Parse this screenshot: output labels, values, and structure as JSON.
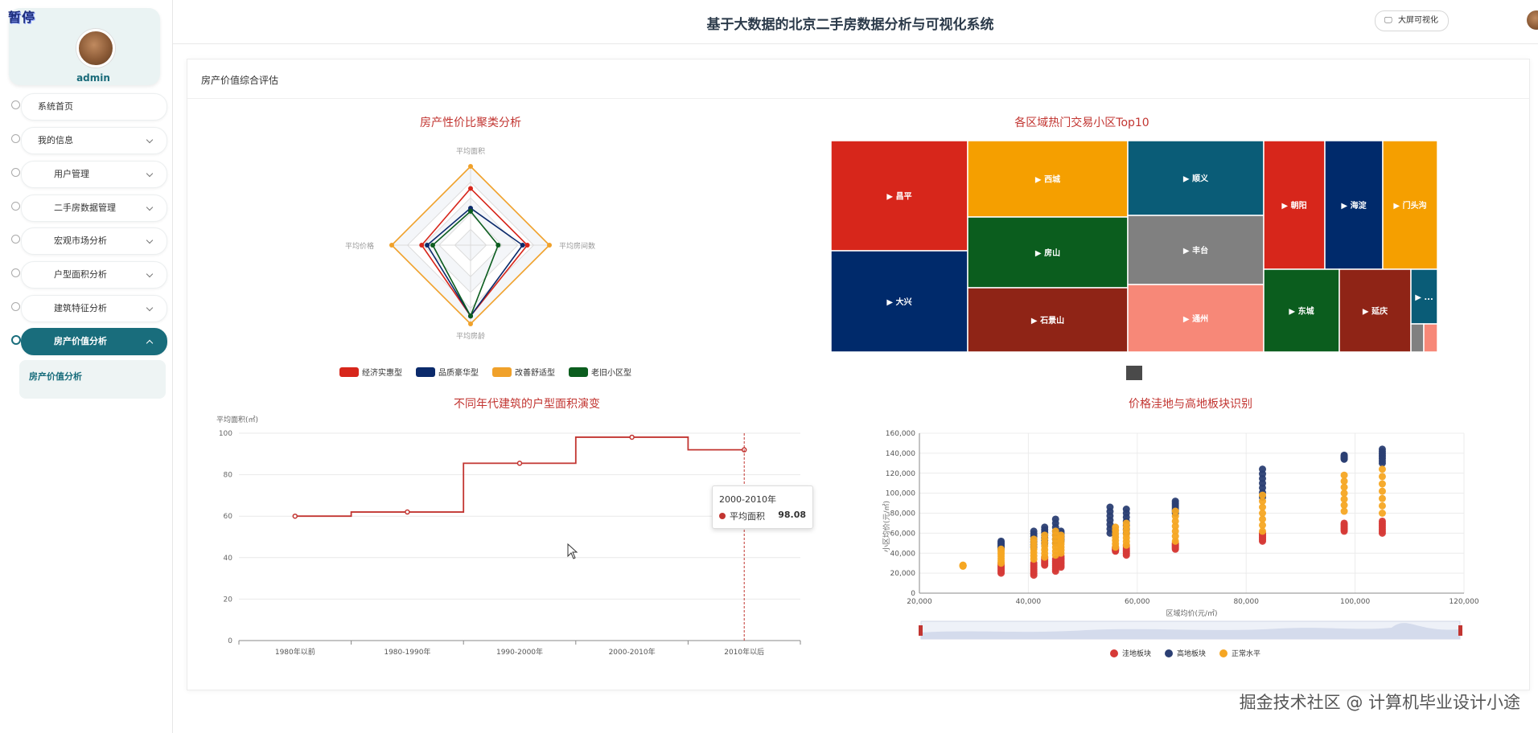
{
  "sidebar": {
    "pause_label": "暂停",
    "username": "admin",
    "menu": [
      {
        "label": "系统首页"
      },
      {
        "label": "我的信息"
      },
      {
        "label": "用户管理"
      },
      {
        "label": "二手房数据管理"
      },
      {
        "label": "宏观市场分析"
      },
      {
        "label": "户型面积分析"
      },
      {
        "label": "建筑特征分析"
      },
      {
        "label": "房产价值分析"
      }
    ],
    "submenu": {
      "label": "房产价值分析"
    }
  },
  "header": {
    "title": "基于大数据的北京二手房数据分析与可视化系统",
    "bigscreen_label": "大屏可视化",
    "username": "admin"
  },
  "panel": {
    "title": "房产价值综合评估"
  },
  "tooltip": {
    "title": "2000-2010年",
    "name": "平均面积",
    "value": "98.08"
  },
  "watermark": "掘金技术社区 @ 计算机毕业设计小途",
  "colors": {
    "primary": "#196d7c",
    "chart_red": "#c23531",
    "navy": "#001f6b",
    "orange": "#f5a623",
    "green": "#0b5d1e"
  },
  "chart_data": [
    {
      "type": "radar",
      "title": "房产性价比聚类分析",
      "indicators": [
        "平均面积",
        "平均房间数",
        "平均房龄",
        "平均价格"
      ],
      "series": [
        {
          "name": "经济实惠型",
          "color": "#d7261b",
          "values": [
            0.72,
            0.72,
            0.9,
            0.62
          ]
        },
        {
          "name": "品质豪华型",
          "color": "#0b2a6b",
          "values": [
            0.47,
            0.66,
            0.9,
            0.55
          ]
        },
        {
          "name": "改善舒适型",
          "color": "#f0a12a",
          "values": [
            1.0,
            1.0,
            1.0,
            1.0
          ]
        },
        {
          "name": "老旧小区型",
          "color": "#0b5d1e",
          "values": [
            0.43,
            0.35,
            0.9,
            0.48
          ]
        }
      ]
    },
    {
      "type": "treemap",
      "title": "各区域热门交易小区Top10",
      "items": [
        {
          "name": "▶ 昌平",
          "color": "#d7261b"
        },
        {
          "name": "▶ 大兴",
          "color": "#002a6b"
        },
        {
          "name": "▶ 西城",
          "color": "#f59f00"
        },
        {
          "name": "▶ 房山",
          "color": "#0b5d1e"
        },
        {
          "name": "▶ 石景山",
          "color": "#8f2416"
        },
        {
          "name": "▶ 顺义",
          "color": "#0a5c77"
        },
        {
          "name": "▶ 丰台",
          "color": "#808080"
        },
        {
          "name": "▶ 通州",
          "color": "#f78878"
        },
        {
          "name": "▶ 朝阳",
          "color": "#d7261b"
        },
        {
          "name": "▶ 海淀",
          "color": "#002a6b"
        },
        {
          "name": "▶ 门头沟",
          "color": "#f59f00"
        },
        {
          "name": "▶ 东城",
          "color": "#0b5d1e"
        },
        {
          "name": "▶ 延庆",
          "color": "#8f2416"
        },
        {
          "name": "▶ ...",
          "color": "#0a5c77"
        }
      ]
    },
    {
      "type": "line",
      "step": true,
      "title": "不同年代建筑的户型面积演变",
      "ylabel": "平均面积(㎡)",
      "categories": [
        "1980年以前",
        "1980-1990年",
        "1990-2000年",
        "2000-2010年",
        "2010年以后"
      ],
      "values": [
        60,
        62,
        85.5,
        98.08,
        92
      ],
      "ylim": [
        0,
        100
      ],
      "yticks": [
        "0",
        "20",
        "40",
        "60",
        "80",
        "100"
      ]
    },
    {
      "type": "scatter",
      "title": "价格洼地与高地板块识别",
      "xlabel": "区域均价(元/㎡)",
      "ylabel": "小区均价(元/㎡)",
      "xlim": [
        20000,
        120000
      ],
      "ylim": [
        0,
        160000
      ],
      "xticks": [
        "20,000",
        "40,000",
        "60,000",
        "80,000",
        "100,000",
        "120,000"
      ],
      "yticks": [
        "0",
        "20,000",
        "40,000",
        "60,000",
        "80,000",
        "100,000",
        "120,000",
        "140,000",
        "160,000"
      ],
      "legend": [
        "洼地板块",
        "高地板块",
        "正常水平"
      ],
      "series": [
        {
          "name": "洼地板块",
          "color": "#d63a37",
          "groups": [
            [
              35000,
              20000,
              30000
            ],
            [
              41000,
              18000,
              30000
            ],
            [
              43000,
              28000,
              36000
            ],
            [
              45000,
              22000,
              34000
            ],
            [
              46000,
              26000,
              37000
            ],
            [
              56000,
              42000,
              46000
            ],
            [
              58000,
              38000,
              48000
            ],
            [
              67000,
              44000,
              50000
            ],
            [
              83000,
              52000,
              60000
            ],
            [
              98000,
              62000,
              70000
            ],
            [
              105000,
              60000,
              72000
            ]
          ]
        },
        {
          "name": "高地板块",
          "color": "#2b3f73",
          "groups": [
            [
              35000,
              44000,
              52000
            ],
            [
              41000,
              46000,
              62000
            ],
            [
              43000,
              50000,
              66000
            ],
            [
              45000,
              50000,
              74000
            ],
            [
              46000,
              52000,
              62000
            ],
            [
              55000,
              60000,
              86000
            ],
            [
              58000,
              60000,
              84000
            ],
            [
              67000,
              80000,
              92000
            ],
            [
              83000,
              96000,
              124000
            ],
            [
              98000,
              134000,
              138000
            ],
            [
              105000,
              130000,
              144000
            ]
          ]
        },
        {
          "name": "正常水平",
          "color": "#f5a623",
          "groups": [
            [
              28000,
              27000,
              28000
            ],
            [
              35000,
              30000,
              44000
            ],
            [
              41000,
              34000,
              54000
            ],
            [
              43000,
              36000,
              58000
            ],
            [
              45000,
              38000,
              62000
            ],
            [
              46000,
              40000,
              58000
            ],
            [
              56000,
              46000,
              66000
            ],
            [
              58000,
              48000,
              70000
            ],
            [
              67000,
              52000,
              82000
            ],
            [
              83000,
              62000,
              98000
            ],
            [
              98000,
              82000,
              118000
            ],
            [
              105000,
              80000,
              124000
            ]
          ]
        }
      ]
    }
  ]
}
